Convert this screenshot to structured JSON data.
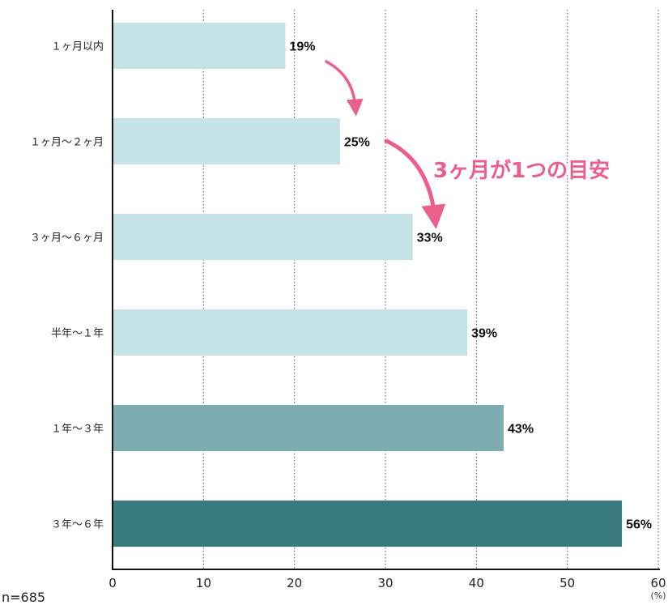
{
  "chart_data": {
    "type": "bar",
    "orientation": "horizontal",
    "categories": [
      "１ヶ月以内",
      "１ヶ月〜２ヶ月",
      "３ヶ月〜６ヶ月",
      "半年〜１年",
      "１年〜３年",
      "３年〜６年"
    ],
    "values": [
      19,
      25,
      33,
      39,
      43,
      56
    ],
    "value_labels": [
      "19%",
      "25%",
      "33%",
      "39%",
      "43%",
      "56%"
    ],
    "bar_colors": [
      "#c5e2e7",
      "#c5e2e7",
      "#c5e2e7",
      "#c5e2e7",
      "#7eacb0",
      "#3a7b7e"
    ],
    "xlim": [
      0,
      60
    ],
    "x_ticks": [
      0,
      10,
      20,
      30,
      40,
      50,
      60
    ],
    "x_unit": "(%)",
    "grid": "vertical dotted",
    "annotation": {
      "text": "3ヶ月が1つの目安",
      "color": "#ec5f8a"
    }
  },
  "sample_size": "n=685"
}
